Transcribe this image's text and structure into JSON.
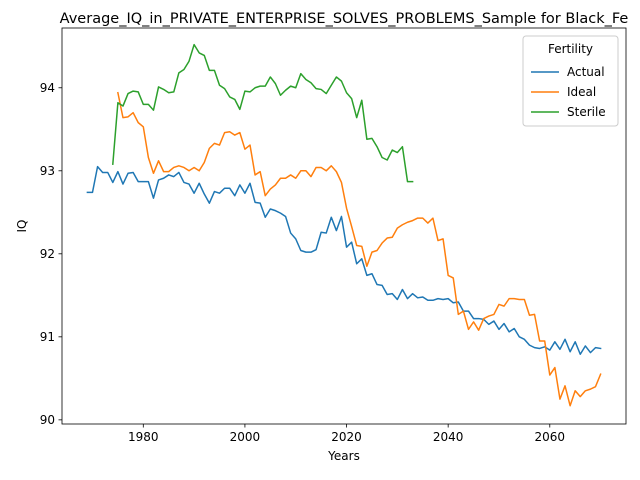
{
  "chart_data": {
    "type": "line",
    "title": "Average_IQ_in_PRIVATE_ENTERPRISE_SOLVES_PROBLEMS_Sample for Black_Fe",
    "xlabel": "Years",
    "ylabel": "IQ",
    "xlim": [
      1964,
      2075
    ],
    "ylim": [
      89.95,
      94.72
    ],
    "xticks": [
      1980,
      2000,
      2020,
      2040,
      2060
    ],
    "yticks": [
      90,
      91,
      92,
      93,
      94
    ],
    "grid": false,
    "legend": {
      "title": "Fertility",
      "placement": "top-right"
    },
    "series": [
      {
        "name": "Actual",
        "color": "#1f77b4",
        "x": [
          1969,
          1970,
          1971,
          1972,
          1973,
          1974,
          1975,
          1976,
          1977,
          1978,
          1979,
          1980,
          1981,
          1982,
          1983,
          1984,
          1985,
          1986,
          1987,
          1988,
          1989,
          1990,
          1991,
          1992,
          1993,
          1994,
          1995,
          1996,
          1997,
          1998,
          1999,
          2000,
          2001,
          2002,
          2003,
          2004,
          2005,
          2006,
          2007,
          2008,
          2009,
          2010,
          2011,
          2012,
          2013,
          2014,
          2015,
          2016,
          2017,
          2018,
          2019,
          2020,
          2021,
          2022,
          2023,
          2024,
          2025,
          2026,
          2027,
          2028,
          2029,
          2030,
          2031,
          2032,
          2033,
          2034,
          2035,
          2036,
          2037,
          2038,
          2039,
          2040,
          2041,
          2042,
          2043,
          2044,
          2045,
          2046,
          2047,
          2048,
          2049,
          2050,
          2051,
          2052,
          2053,
          2054,
          2055,
          2056,
          2057,
          2058,
          2059,
          2060,
          2061,
          2062,
          2063,
          2064,
          2065,
          2066,
          2067,
          2068,
          2069,
          2070
        ],
        "y": [
          92.74,
          92.74,
          93.05,
          92.98,
          92.98,
          92.86,
          92.99,
          92.84,
          92.97,
          92.98,
          92.87,
          92.87,
          92.87,
          92.67,
          92.89,
          92.91,
          92.95,
          92.93,
          92.98,
          92.86,
          92.84,
          92.73,
          92.85,
          92.72,
          92.61,
          92.75,
          92.73,
          92.79,
          92.79,
          92.7,
          92.83,
          92.73,
          92.85,
          92.62,
          92.61,
          92.44,
          92.54,
          92.52,
          92.49,
          92.45,
          92.25,
          92.18,
          92.04,
          92.02,
          92.02,
          92.05,
          92.26,
          92.25,
          92.44,
          92.28,
          92.45,
          92.08,
          92.14,
          91.88,
          91.94,
          91.74,
          91.76,
          91.63,
          91.62,
          91.51,
          91.52,
          91.45,
          91.57,
          91.46,
          91.52,
          91.47,
          91.48,
          91.44,
          91.44,
          91.46,
          91.45,
          91.46,
          91.41,
          91.42,
          91.31,
          91.31,
          91.22,
          91.22,
          91.21,
          91.15,
          91.19,
          91.09,
          91.16,
          91.06,
          91.1,
          91.0,
          90.97,
          90.9,
          90.87,
          90.86,
          90.88,
          90.84,
          90.94,
          90.85,
          90.97,
          90.82,
          90.94,
          90.79,
          90.89,
          90.81,
          90.87,
          90.86
        ]
      },
      {
        "name": "Ideal",
        "color": "#ff7f0e",
        "x": [
          1975,
          1976,
          1977,
          1978,
          1979,
          1980,
          1981,
          1982,
          1983,
          1984,
          1985,
          1986,
          1987,
          1988,
          1989,
          1990,
          1991,
          1992,
          1993,
          1994,
          1995,
          1996,
          1997,
          1998,
          1999,
          2000,
          2001,
          2002,
          2003,
          2004,
          2005,
          2006,
          2007,
          2008,
          2009,
          2010,
          2011,
          2012,
          2013,
          2014,
          2015,
          2016,
          2017,
          2018,
          2019,
          2020,
          2021,
          2022,
          2023,
          2024,
          2025,
          2026,
          2027,
          2028,
          2029,
          2030,
          2031,
          2032,
          2033,
          2034,
          2035,
          2036,
          2037,
          2038,
          2039,
          2040,
          2041,
          2042,
          2043,
          2044,
          2045,
          2046,
          2047,
          2048,
          2049,
          2050,
          2051,
          2052,
          2053,
          2054,
          2055,
          2056,
          2057,
          2058,
          2059,
          2060,
          2061,
          2062,
          2063,
          2064,
          2065,
          2066,
          2067,
          2068,
          2069,
          2070
        ],
        "y": [
          93.94,
          93.64,
          93.65,
          93.7,
          93.58,
          93.53,
          93.16,
          92.97,
          93.12,
          92.99,
          92.99,
          93.04,
          93.06,
          93.04,
          93.0,
          93.04,
          93.0,
          93.1,
          93.27,
          93.33,
          93.31,
          93.46,
          93.47,
          93.43,
          93.46,
          93.26,
          93.31,
          92.95,
          92.99,
          92.7,
          92.78,
          92.83,
          92.91,
          92.91,
          92.95,
          92.91,
          93.0,
          93.0,
          92.93,
          93.04,
          93.04,
          93.0,
          93.06,
          92.99,
          92.86,
          92.55,
          92.33,
          92.1,
          92.09,
          91.85,
          92.02,
          92.04,
          92.13,
          92.19,
          92.2,
          92.31,
          92.35,
          92.38,
          92.4,
          92.43,
          92.43,
          92.37,
          92.43,
          92.16,
          92.18,
          91.74,
          91.71,
          91.27,
          91.31,
          91.09,
          91.18,
          91.08,
          91.22,
          91.25,
          91.27,
          91.39,
          91.37,
          91.46,
          91.46,
          91.45,
          91.45,
          91.26,
          91.27,
          90.95,
          90.95,
          90.54,
          90.63,
          90.25,
          90.41,
          90.17,
          90.35,
          90.28,
          90.35,
          90.37,
          90.4,
          90.55
        ]
      },
      {
        "name": "Sterile",
        "color": "#2ca02c",
        "x": [
          1974,
          1975,
          1976,
          1977,
          1978,
          1979,
          1980,
          1981,
          1982,
          1983,
          1984,
          1985,
          1986,
          1987,
          1988,
          1989,
          1990,
          1991,
          1992,
          1993,
          1994,
          1995,
          1996,
          1997,
          1998,
          1999,
          2000,
          2001,
          2002,
          2003,
          2004,
          2005,
          2006,
          2007,
          2008,
          2009,
          2010,
          2011,
          2012,
          2013,
          2014,
          2015,
          2016,
          2017,
          2018,
          2019,
          2020,
          2021,
          2022,
          2023,
          2024,
          2025,
          2026,
          2027,
          2028,
          2029,
          2030,
          2031,
          2032,
          2033
        ],
        "y": [
          93.08,
          93.82,
          93.78,
          93.93,
          93.96,
          93.95,
          93.8,
          93.8,
          93.73,
          94.01,
          93.98,
          93.94,
          93.95,
          94.18,
          94.22,
          94.32,
          94.52,
          94.42,
          94.39,
          94.21,
          94.21,
          94.03,
          93.99,
          93.89,
          93.86,
          93.74,
          93.96,
          93.95,
          94.0,
          94.02,
          94.02,
          94.13,
          94.05,
          93.91,
          93.97,
          94.02,
          94.0,
          94.17,
          94.1,
          94.06,
          93.99,
          93.98,
          93.93,
          94.03,
          94.13,
          94.08,
          93.94,
          93.87,
          93.64,
          93.85,
          93.38,
          93.39,
          93.29,
          93.16,
          93.13,
          93.25,
          93.22,
          93.29,
          92.87,
          92.87
        ]
      }
    ]
  }
}
